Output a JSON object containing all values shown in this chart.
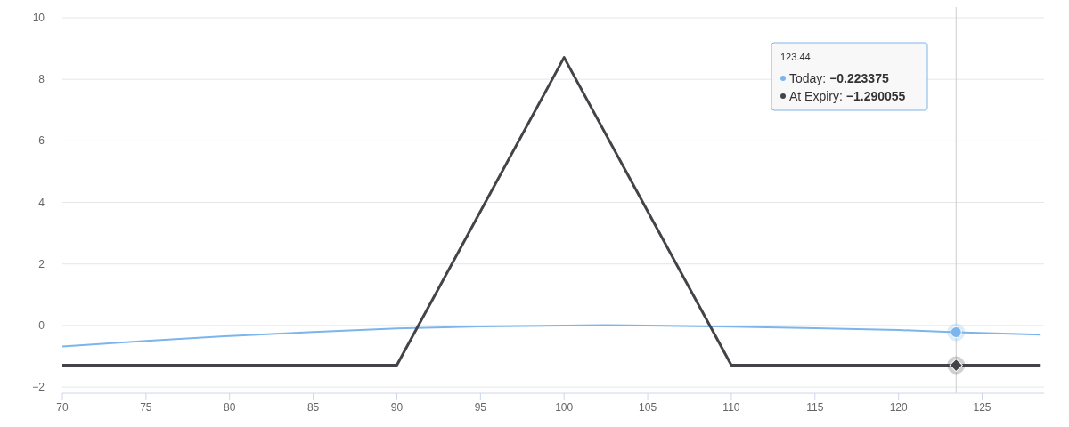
{
  "chart_data": {
    "type": "line",
    "xlim": [
      70,
      128.7
    ],
    "xticks": [
      70,
      75,
      80,
      85,
      90,
      95,
      100,
      105,
      110,
      115,
      120,
      125
    ],
    "ylim": [
      -2.2,
      10
    ],
    "yticks": [
      -2,
      0,
      2,
      4,
      6,
      8,
      10
    ],
    "grid": "y",
    "marker": "none",
    "series": [
      {
        "color": "#7cb5ec",
        "x": [
          70,
          75,
          80,
          85,
          90,
          95,
          100,
          102.5,
          105,
          110,
          115,
          120,
          123.44,
          128.5
        ],
        "values": [
          -0.68,
          -0.5,
          -0.34,
          -0.21,
          -0.1,
          -0.03,
          0,
          0.01,
          0,
          -0.04,
          -0.09,
          -0.15,
          -0.22,
          -0.3
        ]
      },
      {
        "color": "#434348",
        "x": [
          70,
          90,
          100,
          110,
          123.44,
          128.5
        ],
        "values": [
          -1.29,
          -1.29,
          8.71,
          -1.29,
          -1.29,
          -1.29
        ]
      }
    ],
    "ref_lines": [
      {
        "axis": "x",
        "value": 123.44,
        "color": "#cccccc"
      }
    ],
    "annotations": [
      "123.44",
      "Today: −0.223375",
      "At Expiry: −1.290055"
    ]
  }
}
